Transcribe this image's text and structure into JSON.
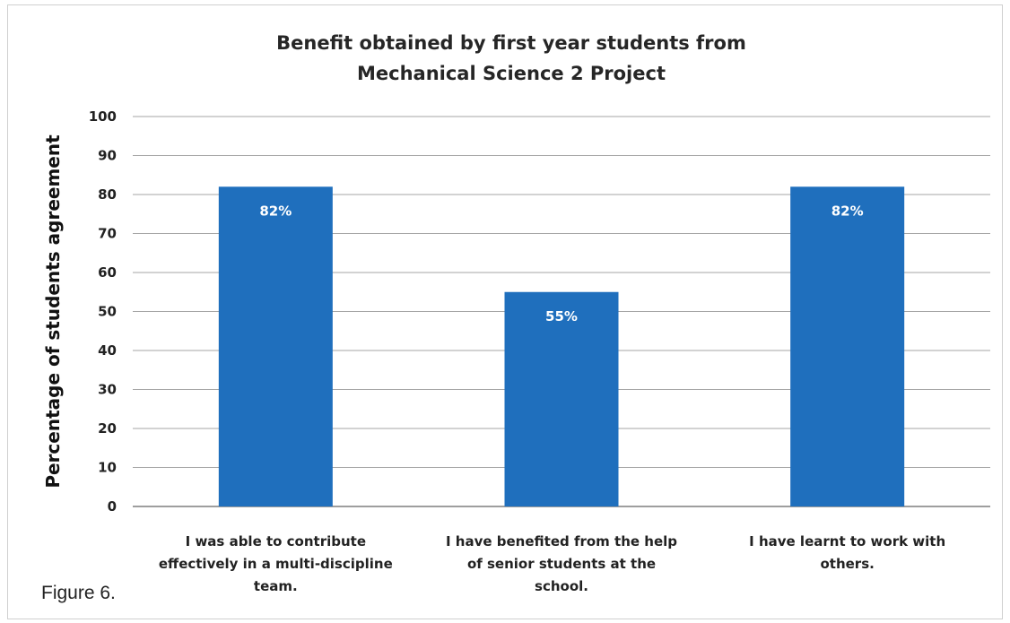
{
  "chart_data": {
    "type": "bar",
    "title": [
      "Benefit obtained by first year students from",
      "Mechanical Science 2 Project"
    ],
    "ylabel": "Percentage of students agreement",
    "xlabel": "",
    "ylim": [
      0,
      100
    ],
    "yticks": [
      0,
      10,
      20,
      30,
      40,
      50,
      60,
      70,
      80,
      90,
      100
    ],
    "grid": true,
    "bar_color": "#1f6fbd",
    "categories": [
      [
        "I was able to contribute",
        "effectively in a multi-discipline",
        "team."
      ],
      [
        "I have benefited from the help",
        "of senior students at the",
        "school."
      ],
      [
        "I have learnt to work with",
        "others."
      ]
    ],
    "values": [
      82,
      55,
      82
    ],
    "data_labels": [
      "82%",
      "55%",
      "82%"
    ]
  },
  "caption": "Figure 6."
}
